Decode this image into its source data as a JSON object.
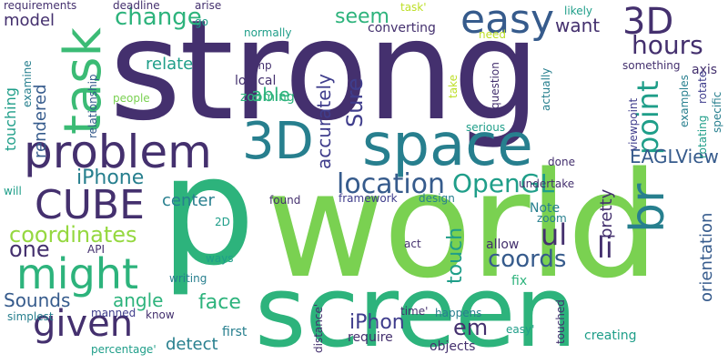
{
  "background": "#ffffff",
  "palette": {
    "purple": "#44306e",
    "indigo": "#3f3d8c",
    "blue": "#365b8c",
    "teal": "#277f8e",
    "teal2": "#1f9e89",
    "green": "#2db37c",
    "green2": "#3bbb75",
    "lime": "#7ad151",
    "yellow": "#bddf26",
    "lightlime": "#95d840"
  },
  "words": [
    {
      "text": "strong",
      "color": "#44306e"
    },
    {
      "text": "world",
      "color": "#7ad151"
    },
    {
      "text": "p",
      "color": "#2db37c"
    },
    {
      "text": "screen",
      "color": "#2db37c"
    },
    {
      "text": "space",
      "color": "#277f8e"
    },
    {
      "text": "problem",
      "color": "#44306e"
    },
    {
      "text": "3D",
      "color": "#277f8e"
    },
    {
      "text": "easy",
      "color": "#365b8c"
    },
    {
      "text": "task",
      "color": "#3bbb75"
    },
    {
      "text": "might",
      "color": "#2db37c"
    },
    {
      "text": "br",
      "color": "#277f8e"
    },
    {
      "text": "3D",
      "color": "#44306e"
    },
    {
      "text": "given",
      "color": "#44306e"
    },
    {
      "text": "CUBE",
      "color": "#44306e"
    },
    {
      "text": "hours",
      "color": "#44306e"
    },
    {
      "text": "location",
      "color": "#365b8c"
    },
    {
      "text": "change",
      "color": "#2db37c"
    },
    {
      "text": "OpenGL",
      "color": "#1f9e89"
    },
    {
      "text": "coordinates",
      "color": "#95d840"
    },
    {
      "text": "point",
      "color": "#1f9e89"
    },
    {
      "text": "seem",
      "color": "#2db37c"
    },
    {
      "text": "iPhone",
      "color": "#277f8e"
    },
    {
      "text": "ul",
      "color": "#44306e"
    },
    {
      "text": "li",
      "color": "#44306e"
    },
    {
      "text": "Sure",
      "color": "#3f3d8c"
    },
    {
      "text": "EAGLView",
      "color": "#365b8c"
    },
    {
      "text": "coords",
      "color": "#365b8c"
    },
    {
      "text": "face",
      "color": "#2db37c"
    },
    {
      "text": "em",
      "color": "#44306e"
    },
    {
      "text": "iPhon",
      "color": "#3f3d8c"
    },
    {
      "text": "one",
      "color": "#44306e"
    },
    {
      "text": "able",
      "color": "#2db37c"
    },
    {
      "text": "Sounds",
      "color": "#365b8c"
    },
    {
      "text": "touch",
      "color": "#1f9e89"
    },
    {
      "text": "accurately",
      "color": "#3f3d8c"
    },
    {
      "text": "want",
      "color": "#44306e"
    },
    {
      "text": "angle",
      "color": "#2db37c"
    },
    {
      "text": "detect",
      "color": "#277f8e"
    },
    {
      "text": "pretty",
      "color": "#44306e"
    },
    {
      "text": "relate",
      "color": "#1f9e89"
    },
    {
      "text": "center",
      "color": "#277f8e"
    },
    {
      "text": "orientation",
      "color": "#365b8c"
    },
    {
      "text": "model",
      "color": "#44306e"
    },
    {
      "text": "rendered",
      "color": "#365b8c"
    },
    {
      "text": "touching",
      "color": "#1f9e89"
    },
    {
      "text": "logical",
      "color": "#44306e"
    },
    {
      "text": "zooming",
      "color": "#2db37c"
    },
    {
      "text": "converting",
      "color": "#44306e"
    },
    {
      "text": "framework",
      "color": "#3f3d8c"
    },
    {
      "text": "design",
      "color": "#277f8e"
    },
    {
      "text": "found",
      "color": "#44306e"
    },
    {
      "text": "first",
      "color": "#277f8e"
    },
    {
      "text": "objects",
      "color": "#44306e"
    },
    {
      "text": "creating",
      "color": "#1f9e89"
    },
    {
      "text": "require",
      "color": "#44306e"
    },
    {
      "text": "fix",
      "color": "#2db37c"
    },
    {
      "text": "allow",
      "color": "#44306e"
    },
    {
      "text": "zoom",
      "color": "#277f8e"
    },
    {
      "text": "Note",
      "color": "#277f8e"
    },
    {
      "text": "writing",
      "color": "#277f8e"
    },
    {
      "text": "ways",
      "color": "#1f9e89"
    },
    {
      "text": "2D",
      "color": "#1f9e89"
    },
    {
      "text": "API",
      "color": "#44306e"
    },
    {
      "text": "act",
      "color": "#44306e"
    },
    {
      "text": "know",
      "color": "#44306e"
    },
    {
      "text": "manned",
      "color": "#3f3d8c"
    },
    {
      "text": "simplest",
      "color": "#277f8e"
    },
    {
      "text": "percentage'",
      "color": "#1f9e89"
    },
    {
      "text": "happens",
      "color": "#277f8e"
    },
    {
      "text": "time'",
      "color": "#44306e"
    },
    {
      "text": "easy'",
      "color": "#1f9e89"
    },
    {
      "text": "undertake",
      "color": "#44306e"
    },
    {
      "text": "done",
      "color": "#44306e"
    },
    {
      "text": "serious",
      "color": "#1f9e89"
    },
    {
      "text": "will",
      "color": "#1f9e89"
    },
    {
      "text": "deadline",
      "color": "#44306e"
    },
    {
      "text": "requirements",
      "color": "#44306e"
    },
    {
      "text": "arise",
      "color": "#44306e"
    },
    {
      "text": "go",
      "color": "#1f9e89"
    },
    {
      "text": "normally",
      "color": "#1f9e89"
    },
    {
      "text": "need",
      "color": "#bddf26"
    },
    {
      "text": "task'",
      "color": "#bddf26"
    },
    {
      "text": "likely",
      "color": "#1f9e89"
    },
    {
      "text": "amp",
      "color": "#44306e"
    },
    {
      "text": "something",
      "color": "#44306e"
    },
    {
      "text": "axis",
      "color": "#44306e"
    },
    {
      "text": "people",
      "color": "#7ad151"
    },
    {
      "text": "examine",
      "color": "#277f8e"
    },
    {
      "text": "relationship",
      "color": "#365b8c"
    },
    {
      "text": "take",
      "color": "#bddf26"
    },
    {
      "text": "question",
      "color": "#44306e"
    },
    {
      "text": "actually",
      "color": "#277f8e"
    },
    {
      "text": "viewpoint",
      "color": "#3f3d8c"
    },
    {
      "text": "examples",
      "color": "#277f8e"
    },
    {
      "text": "rotating",
      "color": "#1f9e89"
    },
    {
      "text": "rotate",
      "color": "#3f3d8c"
    },
    {
      "text": "specific",
      "color": "#277f8e"
    },
    {
      "text": "distance'",
      "color": "#44306e"
    },
    {
      "text": "touched",
      "color": "#44306e"
    }
  ]
}
